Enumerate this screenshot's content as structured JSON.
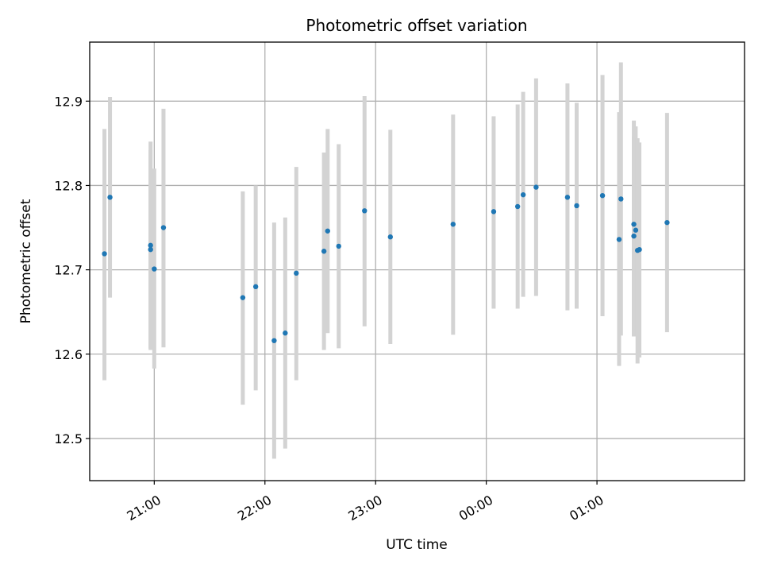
{
  "chart_data": {
    "type": "scatter",
    "title": "Photometric offset variation",
    "xlabel": "UTC time",
    "ylabel": "Photometric offset",
    "xlim": [
      "20:25",
      "02:20"
    ],
    "ylim": [
      12.45,
      12.97
    ],
    "x_ticks": [
      "21:00",
      "22:00",
      "23:00",
      "00:00",
      "01:00"
    ],
    "y_ticks": [
      12.5,
      12.6,
      12.7,
      12.8,
      12.9
    ],
    "grid": true,
    "colors": {
      "point": "#1f77b4",
      "errorbar": "#d3d3d3",
      "grid": "#b0b0b0"
    },
    "points": [
      {
        "x": "20:33",
        "y": 12.719,
        "yerr_low": 12.569,
        "yerr_high": 12.867
      },
      {
        "x": "20:36",
        "y": 12.786,
        "yerr_low": 12.667,
        "yerr_high": 12.905
      },
      {
        "x": "20:58",
        "y": 12.729,
        "yerr_low": 12.605,
        "yerr_high": 12.852
      },
      {
        "x": "20:58",
        "y": 12.724,
        "yerr_low": 12.607,
        "yerr_high": 12.842
      },
      {
        "x": "21:00",
        "y": 12.701,
        "yerr_low": 12.583,
        "yerr_high": 12.82
      },
      {
        "x": "21:05",
        "y": 12.75,
        "yerr_low": 12.608,
        "yerr_high": 12.891
      },
      {
        "x": "21:48",
        "y": 12.667,
        "yerr_low": 12.54,
        "yerr_high": 12.793
      },
      {
        "x": "21:55",
        "y": 12.68,
        "yerr_low": 12.557,
        "yerr_high": 12.8
      },
      {
        "x": "22:05",
        "y": 12.616,
        "yerr_low": 12.476,
        "yerr_high": 12.756
      },
      {
        "x": "22:11",
        "y": 12.625,
        "yerr_low": 12.488,
        "yerr_high": 12.762
      },
      {
        "x": "22:17",
        "y": 12.696,
        "yerr_low": 12.569,
        "yerr_high": 12.822
      },
      {
        "x": "22:32",
        "y": 12.722,
        "yerr_low": 12.605,
        "yerr_high": 12.839
      },
      {
        "x": "22:34",
        "y": 12.746,
        "yerr_low": 12.625,
        "yerr_high": 12.867
      },
      {
        "x": "22:40",
        "y": 12.728,
        "yerr_low": 12.607,
        "yerr_high": 12.849
      },
      {
        "x": "22:54",
        "y": 12.77,
        "yerr_low": 12.633,
        "yerr_high": 12.906
      },
      {
        "x": "23:08",
        "y": 12.739,
        "yerr_low": 12.612,
        "yerr_high": 12.866
      },
      {
        "x": "23:42",
        "y": 12.754,
        "yerr_low": 12.623,
        "yerr_high": 12.884
      },
      {
        "x": "00:04",
        "y": 12.769,
        "yerr_low": 12.654,
        "yerr_high": 12.882
      },
      {
        "x": "00:17",
        "y": 12.775,
        "yerr_low": 12.654,
        "yerr_high": 12.896
      },
      {
        "x": "00:20",
        "y": 12.789,
        "yerr_low": 12.668,
        "yerr_high": 12.911
      },
      {
        "x": "00:27",
        "y": 12.798,
        "yerr_low": 12.669,
        "yerr_high": 12.927
      },
      {
        "x": "00:44",
        "y": 12.786,
        "yerr_low": 12.652,
        "yerr_high": 12.921
      },
      {
        "x": "00:49",
        "y": 12.776,
        "yerr_low": 12.654,
        "yerr_high": 12.898
      },
      {
        "x": "01:03",
        "y": 12.788,
        "yerr_low": 12.645,
        "yerr_high": 12.931
      },
      {
        "x": "01:12",
        "y": 12.736,
        "yerr_low": 12.586,
        "yerr_high": 12.887
      },
      {
        "x": "01:13",
        "y": 12.784,
        "yerr_low": 12.622,
        "yerr_high": 12.946
      },
      {
        "x": "01:20",
        "y": 12.754,
        "yerr_low": 12.621,
        "yerr_high": 12.877
      },
      {
        "x": "01:20",
        "y": 12.74,
        "yerr_low": 12.622,
        "yerr_high": 12.858
      },
      {
        "x": "01:21",
        "y": 12.747,
        "yerr_low": 12.623,
        "yerr_high": 12.87
      },
      {
        "x": "01:22",
        "y": 12.723,
        "yerr_low": 12.589,
        "yerr_high": 12.856
      },
      {
        "x": "01:23",
        "y": 12.724,
        "yerr_low": 12.596,
        "yerr_high": 12.851
      },
      {
        "x": "01:38",
        "y": 12.756,
        "yerr_low": 12.626,
        "yerr_high": 12.886
      }
    ]
  }
}
